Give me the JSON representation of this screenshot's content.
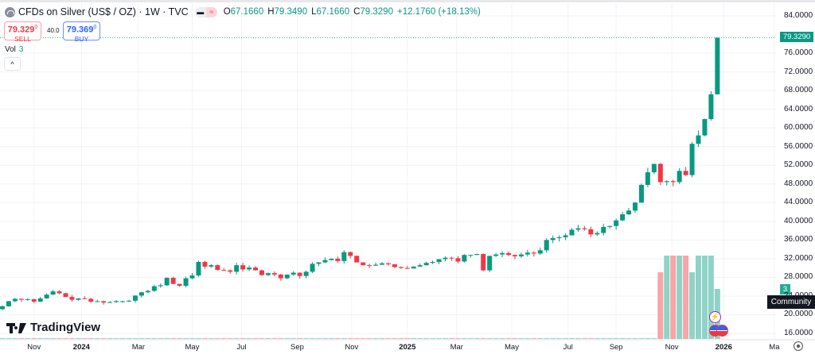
{
  "header": {
    "symbol_title": "CFDs on Silver (US$ / OZ) · 1W · TVC",
    "open_label": "O",
    "open": "67.1660",
    "high_label": "H",
    "high": "79.3490",
    "low_label": "L",
    "low": "67.1660",
    "close_label": "C",
    "close": "79.3290",
    "change": "+12.1760 (+18.13%)",
    "pill_left_icon": "minus-icon",
    "pill_right_icon": "approx-icon"
  },
  "trade": {
    "sell_price": "79.329",
    "sell_sup": "0",
    "sell_label": "SELL",
    "spread": "40.0",
    "buy_price": "79.369",
    "buy_sup": "0",
    "buy_label": "BUY"
  },
  "volume": {
    "label": "Vol",
    "value": "3",
    "badge": "3"
  },
  "collapse_icon": "^",
  "last_price_tag": "79.3290",
  "tooltip": "Community",
  "logo_text": "TradingView",
  "colors": {
    "up": "#089981",
    "down": "#f23645",
    "vol_up": "#8fd3c8",
    "vol_down": "#f7a5a8",
    "grid": "#f2f3f5"
  },
  "chart_data": {
    "type": "candlestick",
    "interval": "1W",
    "y_axis": {
      "min": 16,
      "max": 84,
      "ticks": [
        "84.0000",
        "76.0000",
        "72.0000",
        "68.0000",
        "64.0000",
        "60.0000",
        "56.0000",
        "52.0000",
        "48.0000",
        "44.0000",
        "40.0000",
        "36.0000",
        "32.0000",
        "28.0000",
        "24.0000",
        "20.0000",
        "16.0000"
      ]
    },
    "x_axis_labels": [
      {
        "label": "Nov",
        "bold": false,
        "week": 5
      },
      {
        "label": "2024",
        "bold": true,
        "week": 12.5
      },
      {
        "label": "Mar",
        "bold": false,
        "week": 21.5
      },
      {
        "label": "May",
        "bold": false,
        "week": 30
      },
      {
        "label": "Jul",
        "bold": false,
        "week": 37.8
      },
      {
        "label": "Sep",
        "bold": false,
        "week": 46.6
      },
      {
        "label": "Nov",
        "bold": false,
        "week": 55.2
      },
      {
        "label": "2025",
        "bold": true,
        "week": 64
      },
      {
        "label": "Mar",
        "bold": false,
        "week": 71.8
      },
      {
        "label": "May",
        "bold": false,
        "week": 80.5
      },
      {
        "label": "Jul",
        "bold": false,
        "week": 89.4
      },
      {
        "label": "Sep",
        "bold": false,
        "week": 97
      },
      {
        "label": "Nov",
        "bold": false,
        "week": 105.8
      },
      {
        "label": "2026",
        "bold": true,
        "week": 114
      },
      {
        "label": "Ma",
        "bold": false,
        "week": 122
      }
    ],
    "first_open": 21.2,
    "closes": [
      21.8,
      22.9,
      23.4,
      23.2,
      23.3,
      22.8,
      23.5,
      24.3,
      25.0,
      24.6,
      23.8,
      23.2,
      23.5,
      23.4,
      22.8,
      22.9,
      22.6,
      22.7,
      22.9,
      22.9,
      23.0,
      24.1,
      24.8,
      25.1,
      26.1,
      26.3,
      27.9,
      26.6,
      26.2,
      27.8,
      28.4,
      31.3,
      30.3,
      30.6,
      29.6,
      29.5,
      29.2,
      30.6,
      29.7,
      30.1,
      29.5,
      28.5,
      28.9,
      28.6,
      27.8,
      28.6,
      29.0,
      28.3,
      29.2,
      30.9,
      31.2,
      31.7,
      32.0,
      31.5,
      33.4,
      32.6,
      31.2,
      30.6,
      30.5,
      30.7,
      31.0,
      30.8,
      30.2,
      30.0,
      29.9,
      30.3,
      30.6,
      31.1,
      31.3,
      31.9,
      32.2,
      32.1,
      31.4,
      32.8,
      32.8,
      33.0,
      29.5,
      32.6,
      32.9,
      33.2,
      32.8,
      32.5,
      32.9,
      33.3,
      33.1,
      33.8,
      36.0,
      36.4,
      36.6,
      37.0,
      38.2,
      38.5,
      38.3,
      37.2,
      37.5,
      38.8,
      39.0,
      40.2,
      41.5,
      42.3,
      44.0,
      47.8,
      50.5,
      52.3,
      48.4,
      48.6,
      48.4,
      50.8,
      49.9,
      56.6,
      58.4,
      61.9,
      67.2,
      79.329
    ],
    "last_high": 79.349,
    "volume_tail": [
      2.4,
      3,
      3,
      3,
      3,
      2.4,
      3,
      3,
      3,
      1.8
    ],
    "volume_tail_up": [
      false,
      true,
      false,
      true,
      false,
      true,
      true,
      true,
      true,
      true
    ],
    "volume_max": 3
  }
}
